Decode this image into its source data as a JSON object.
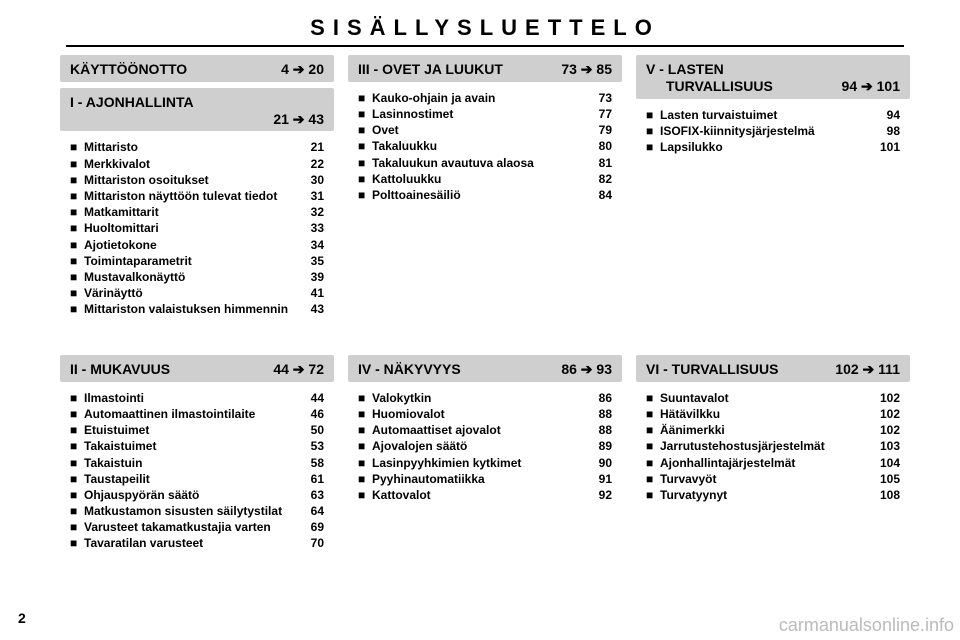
{
  "title": "SISÄLLYSLUETTELO",
  "page_number": "2",
  "watermark": "carmanualsonline.info",
  "colors": {
    "header_bg": "#cfcfcf",
    "text": "#000000",
    "watermark": "#bbbbbb"
  },
  "columns": [
    {
      "upper": [
        {
          "title": "KÄYTTÖÖNOTTO",
          "range_from": "4",
          "range_to": "20",
          "items": []
        },
        {
          "title": "I - AJONHALLINTA",
          "twoline": true,
          "range_from": "21",
          "range_to": "43",
          "items": [
            {
              "label": "Mittaristo",
              "page": "21"
            },
            {
              "label": "Merkkivalot",
              "page": "22"
            },
            {
              "label": "Mittariston osoitukset",
              "page": "30"
            },
            {
              "label": "Mittariston näyttöön tulevat tiedot",
              "page": "31"
            },
            {
              "label": "Matkamittarit",
              "page": "32"
            },
            {
              "label": "Huoltomittari",
              "page": "33"
            },
            {
              "label": "Ajotietokone",
              "page": "34"
            },
            {
              "label": "Toimintaparametrit",
              "page": "35"
            },
            {
              "label": "Mustavalkonäyttö",
              "page": "39"
            },
            {
              "label": "Värinäyttö",
              "page": "41"
            },
            {
              "label": "Mittariston valaistuksen himmennin",
              "page": "43"
            }
          ]
        }
      ],
      "lower": [
        {
          "title": "II - MUKAVUUS",
          "range_from": "44",
          "range_to": "72",
          "items": [
            {
              "label": "Ilmastointi",
              "page": "44"
            },
            {
              "label": "Automaattinen ilmastointilaite",
              "page": "46"
            },
            {
              "label": "Etuistuimet",
              "page": "50"
            },
            {
              "label": "Takaistuimet",
              "page": "53"
            },
            {
              "label": "Takaistuin",
              "page": "58"
            },
            {
              "label": "Taustapeilit",
              "page": "61"
            },
            {
              "label": "Ohjauspyörän säätö",
              "page": "63"
            },
            {
              "label": "Matkustamon sisusten säilytystilat",
              "page": "64"
            },
            {
              "label": "Varusteet takamatkustajia varten",
              "page": "69"
            },
            {
              "label": "Tavaratilan varusteet",
              "page": "70"
            }
          ]
        }
      ]
    },
    {
      "upper": [
        {
          "title": "III - OVET JA LUUKUT",
          "range_from": "73",
          "range_to": "85",
          "items": [
            {
              "label": "Kauko-ohjain ja avain",
              "page": "73"
            },
            {
              "label": "Lasinnostimet",
              "page": "77"
            },
            {
              "label": "Ovet",
              "page": "79"
            },
            {
              "label": "Takaluukku",
              "page": "80"
            },
            {
              "label": "Takaluukun avautuva alaosa",
              "page": "81"
            },
            {
              "label": "Kattoluukku",
              "page": "82"
            },
            {
              "label": "Polttoainesäiliö",
              "page": "84"
            }
          ]
        }
      ],
      "lower": [
        {
          "title": "IV - NÄKYVYYS",
          "range_from": "86",
          "range_to": "93",
          "items": [
            {
              "label": "Valokytkin",
              "page": "86"
            },
            {
              "label": "Huomiovalot",
              "page": "88"
            },
            {
              "label": "Automaattiset ajovalot",
              "page": "88"
            },
            {
              "label": "Ajovalojen säätö",
              "page": "89"
            },
            {
              "label": "Lasinpyyhkimien kytkimet",
              "page": "90"
            },
            {
              "label": "Pyyhinautomatiikka",
              "page": "91"
            },
            {
              "label": "Kattovalot",
              "page": "92"
            }
          ]
        }
      ]
    },
    {
      "upper": [
        {
          "title_line1": "V - LASTEN",
          "title_line2": "TURVALLISUUS",
          "twoline": true,
          "range_from": "94",
          "range_to": "101",
          "items": [
            {
              "label": "Lasten turvaistuimet",
              "page": "94"
            },
            {
              "label": "ISOFIX-kiinnitysjärjestelmä",
              "page": "98"
            },
            {
              "label": "Lapsilukko",
              "page": "101"
            }
          ]
        }
      ],
      "lower": [
        {
          "title": "VI - TURVALLISUUS",
          "range_from": "102",
          "range_to": "111",
          "items": [
            {
              "label": "Suuntavalot",
              "page": "102"
            },
            {
              "label": "Hätävilkku",
              "page": "102"
            },
            {
              "label": "Äänimerkki",
              "page": "102"
            },
            {
              "label": "Jarrutustehostusjärjestelmät",
              "page": "103"
            },
            {
              "label": "Ajonhallintajärjestelmät",
              "page": "104"
            },
            {
              "label": "Turvavyöt",
              "page": "105"
            },
            {
              "label": "Turvatyynyt",
              "page": "108"
            }
          ]
        }
      ]
    }
  ]
}
